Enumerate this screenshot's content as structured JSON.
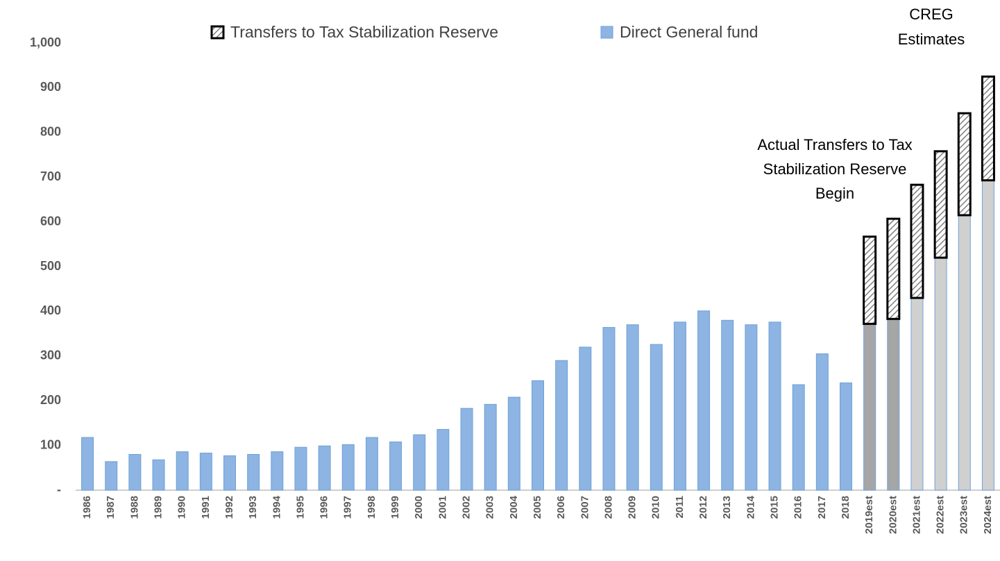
{
  "chart_data": {
    "type": "bar",
    "stacked": true,
    "hatch_series": [
      0
    ],
    "categories": [
      "1986",
      "1987",
      "1988",
      "1989",
      "1990",
      "1991",
      "1992",
      "1993",
      "1994",
      "1995",
      "1996",
      "1997",
      "1998",
      "1999",
      "2000",
      "2001",
      "2002",
      "2003",
      "2004",
      "2005",
      "2006",
      "2007",
      "2008",
      "2009",
      "2010",
      "2011",
      "2012",
      "2013",
      "2014",
      "2015",
      "2016",
      "2017",
      "2018",
      "2019est",
      "2020est",
      "2021est",
      "2022est",
      "2023est",
      "2024est"
    ],
    "series": [
      {
        "name": "Transfers to Tax Stabilization Reserve",
        "color": "#808080",
        "values": [
          null,
          null,
          null,
          null,
          null,
          null,
          null,
          null,
          null,
          null,
          null,
          null,
          null,
          null,
          null,
          null,
          null,
          null,
          null,
          null,
          null,
          null,
          null,
          null,
          null,
          null,
          null,
          null,
          null,
          null,
          null,
          null,
          null,
          195,
          224,
          253,
          238,
          228,
          232
        ]
      },
      {
        "name": "Direct General fund",
        "color": "#8db4e2",
        "colors": [
          "#8db4e2",
          "#8db4e2",
          "#8db4e2",
          "#8db4e2",
          "#8db4e2",
          "#8db4e2",
          "#8db4e2",
          "#8db4e2",
          "#8db4e2",
          "#8db4e2",
          "#8db4e2",
          "#8db4e2",
          "#8db4e2",
          "#8db4e2",
          "#8db4e2",
          "#8db4e2",
          "#8db4e2",
          "#8db4e2",
          "#8db4e2",
          "#8db4e2",
          "#8db4e2",
          "#8db4e2",
          "#8db4e2",
          "#8db4e2",
          "#8db4e2",
          "#8db4e2",
          "#8db4e2",
          "#8db4e2",
          "#8db4e2",
          "#8db4e2",
          "#8db4e2",
          "#8db4e2",
          "#8db4e2",
          "#a6a6a6",
          "#a6a6a6",
          "#d0d0d0",
          "#d0d0d0",
          "#d0d0d0",
          "#d0d0d0"
        ],
        "values": [
          118,
          64,
          80,
          68,
          86,
          83,
          77,
          80,
          86,
          96,
          99,
          102,
          118,
          108,
          124,
          136,
          183,
          192,
          208,
          245,
          290,
          320,
          364,
          370,
          326,
          376,
          401,
          380,
          370,
          376,
          236,
          305,
          240,
          372,
          383,
          430,
          520,
          615,
          693
        ]
      }
    ],
    "ylim": [
      0,
      1000
    ],
    "yticks": [
      {
        "value": 0,
        "label": "-"
      },
      100,
      200,
      300,
      400,
      500,
      600,
      700,
      800,
      900,
      {
        "value": 1000,
        "label": "1,000"
      }
    ],
    "grid": false,
    "annotations": [
      [
        "CREG",
        "Estimates"
      ],
      [
        "Actual Transfers to Tax",
        "Stabilization Reserve",
        "Begin"
      ]
    ]
  }
}
